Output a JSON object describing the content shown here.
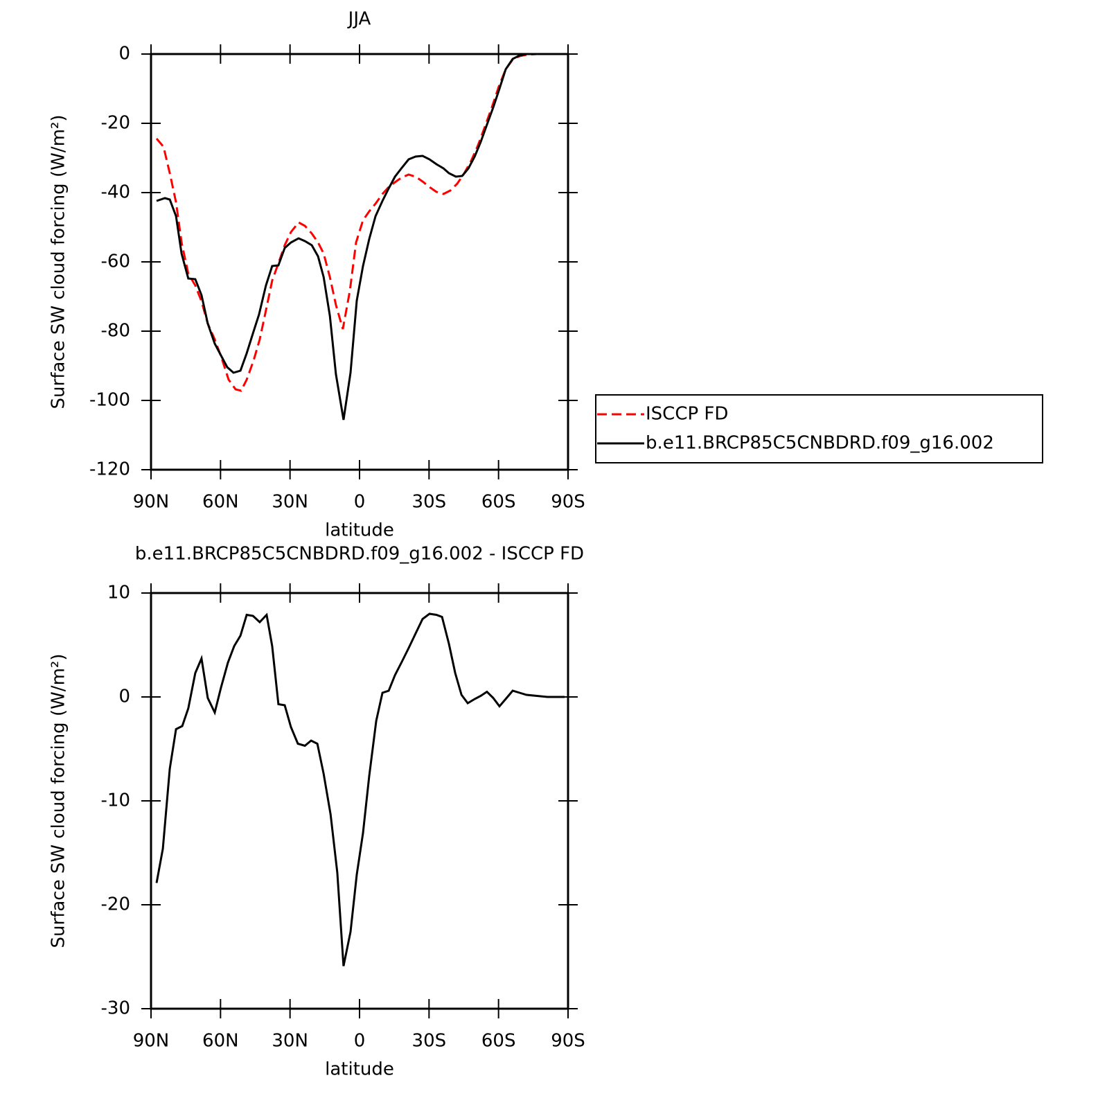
{
  "chart_data": [
    {
      "type": "line",
      "title": "JJA",
      "xlabel": "latitude",
      "ylabel": "Surface SW cloud forcing (W/m²)",
      "xlim": [
        90,
        -90
      ],
      "ylim": [
        -120,
        0
      ],
      "xticks": [
        {
          "value": 90,
          "label": "90N"
        },
        {
          "value": 60,
          "label": "60N"
        },
        {
          "value": 30,
          "label": "30N"
        },
        0,
        {
          "value": -30,
          "label": "30S"
        },
        {
          "value": -60,
          "label": "60S"
        },
        {
          "value": -90,
          "label": "90S"
        }
      ],
      "yticks": [
        -120,
        -100,
        -80,
        -60,
        -40,
        -20,
        0
      ],
      "legend": "right",
      "series": [
        {
          "name": "ISCCP FD",
          "color": "#ff0000",
          "style": "dashed",
          "x": [
            87.6,
            84.6,
            81.9,
            79.2,
            76.8,
            73.9,
            70.9,
            68.2,
            65.5,
            62.5,
            59.5,
            56.5,
            53.5,
            51.1,
            48.7,
            45.7,
            43.1,
            40.4,
            37.7,
            35,
            32.3,
            29.6,
            26.3,
            23.6,
            20.6,
            17.9,
            15.5,
            12.8,
            10.2,
            7.2,
            4.2,
            1.5,
            -1.5,
            -4.2,
            -6.9,
            -9.9,
            -12.6,
            -15.3,
            -18.3,
            -21.2,
            -24.2,
            -27.2,
            -30.2,
            -33.2,
            -36.2,
            -39.2,
            -42.2,
            -45.2,
            -48.2,
            -51.1,
            -54.1,
            -57.1,
            -60.1,
            -63.1,
            -66.1,
            -69.1,
            -72.1,
            -76.6
          ],
          "values": [
            -24.4,
            -26.8,
            -34.4,
            -42.8,
            -54.4,
            -63.4,
            -66.8,
            -71.4,
            -77.8,
            -82.4,
            -87.8,
            -94,
            -96.8,
            -97.2,
            -94,
            -88.4,
            -82.4,
            -74,
            -65.4,
            -60.4,
            -55.2,
            -51.4,
            -48.6,
            -49.6,
            -51.8,
            -54.4,
            -57.6,
            -64.4,
            -72.4,
            -79.4,
            -68.4,
            -54.4,
            -48,
            -45.4,
            -43.2,
            -40.4,
            -38.4,
            -37,
            -35.6,
            -34.8,
            -35.4,
            -36.8,
            -38.4,
            -39.8,
            -40.4,
            -39.4,
            -37.4,
            -34.4,
            -30.8,
            -26.4,
            -21,
            -15.4,
            -9.4,
            -4.4,
            -1.6,
            -0.6,
            -0.2,
            0
          ]
        },
        {
          "name": "b.e11.BRCP85C5CNBDRD.f09_g16.002",
          "color": "#000000",
          "style": "solid",
          "x": [
            87.6,
            84,
            81.9,
            79.2,
            76.8,
            73.9,
            70.9,
            68.2,
            65.5,
            62.5,
            59.5,
            57.1,
            54.4,
            51.4,
            48.7,
            46,
            43.4,
            40.4,
            37.7,
            35,
            32.3,
            29.6,
            26.3,
            23.6,
            20.6,
            17.9,
            15.5,
            12.8,
            10.2,
            6.9,
            3.9,
            1.2,
            -1.5,
            -4.2,
            -6.9,
            -9.9,
            -12.6,
            -15.3,
            -18.3,
            -21.2,
            -24.2,
            -27.2,
            -30.2,
            -33.2,
            -36.2,
            -38.6,
            -41.6,
            -44.3,
            -47,
            -49.7,
            -52.3,
            -55,
            -57.7,
            -60.4,
            -63.1,
            -66.1,
            -69.1,
            -72.1,
            -76.6
          ],
          "values": [
            -42.4,
            -41.6,
            -42,
            -46.8,
            -57.6,
            -64.8,
            -65,
            -69.6,
            -77.8,
            -83.6,
            -87.4,
            -90.4,
            -92,
            -91.4,
            -86.4,
            -80.6,
            -75.2,
            -66.8,
            -61.2,
            -61,
            -56,
            -54.4,
            -53.2,
            -54,
            -55.2,
            -58.4,
            -64.4,
            -75.6,
            -92.4,
            -105.6,
            -92,
            -71.2,
            -61.2,
            -53.4,
            -46.8,
            -42.4,
            -38.8,
            -35.4,
            -32.8,
            -30.4,
            -29.6,
            -29.4,
            -30.4,
            -31.8,
            -33,
            -34.4,
            -35.4,
            -35.2,
            -33,
            -29.6,
            -25.4,
            -20.4,
            -15.4,
            -10,
            -4.4,
            -1.4,
            -0.4,
            0,
            0
          ]
        }
      ]
    },
    {
      "type": "line",
      "title": "b.e11.BRCP85C5CNBDRD.f09_g16.002 - ISCCP FD",
      "xlabel": "latitude",
      "ylabel": "Surface SW cloud forcing (W/m²)",
      "xlim": [
        90,
        -90
      ],
      "ylim": [
        -30,
        10
      ],
      "xticks": [
        {
          "value": 90,
          "label": "90N"
        },
        {
          "value": 60,
          "label": "60N"
        },
        {
          "value": 30,
          "label": "30N"
        },
        0,
        {
          "value": -30,
          "label": "30S"
        },
        {
          "value": -60,
          "label": "60S"
        },
        {
          "value": -90,
          "label": "90S"
        }
      ],
      "yticks": [
        -30,
        -20,
        -10,
        0,
        10
      ],
      "series": [
        {
          "color": "#000000",
          "style": "solid",
          "x": [
            87.6,
            84.9,
            81.9,
            79.2,
            76.5,
            73.9,
            70.9,
            68.2,
            65.5,
            62.5,
            59.8,
            56.8,
            54.1,
            51.4,
            48.7,
            46,
            43.1,
            40.1,
            37.7,
            35,
            32.3,
            29.6,
            26.6,
            23.6,
            20.9,
            18.2,
            15.5,
            12.5,
            9.6,
            6.9,
            3.9,
            1.2,
            -1.5,
            -4.2,
            -7.2,
            -9.9,
            -12.6,
            -15.3,
            -18.3,
            -21.2,
            -24.2,
            -27.2,
            -30.2,
            -33.2,
            -35.6,
            -38.6,
            -41.3,
            -44,
            -46.7,
            -49.7,
            -52.3,
            -55,
            -57.7,
            -60.4,
            -63.1,
            -66.1,
            -69.1,
            -72.1,
            -76.6,
            -81.1,
            -88.5
          ],
          "values": [
            -17.9,
            -14.6,
            -6.9,
            -3.1,
            -2.8,
            -1.1,
            2.3,
            3.7,
            -0.1,
            -1.5,
            0.9,
            3.3,
            4.9,
            5.9,
            7.9,
            7.8,
            7.2,
            7.9,
            4.9,
            -0.7,
            -0.8,
            -2.9,
            -4.5,
            -4.7,
            -4.2,
            -4.5,
            -7.4,
            -11.3,
            -16.9,
            -25.9,
            -22.6,
            -17.1,
            -13.1,
            -7.6,
            -2.3,
            0.4,
            0.6,
            2.1,
            3.4,
            4.7,
            6.1,
            7.5,
            8,
            7.9,
            7.7,
            5.1,
            2.3,
            0.2,
            -0.6,
            -0.2,
            0.1,
            0.5,
            -0.1,
            -0.9,
            -0.2,
            0.6,
            0.4,
            0.2,
            0.1,
            0,
            0
          ]
        }
      ]
    }
  ]
}
